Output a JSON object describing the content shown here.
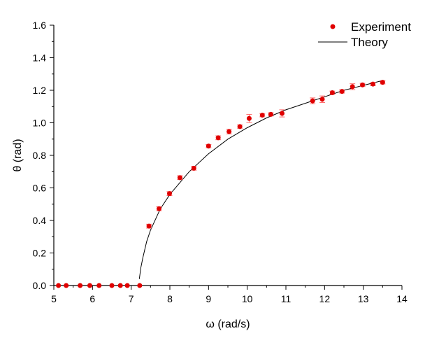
{
  "chart_data": {
    "type": "scatter",
    "title": "",
    "xlabel": "ω (rad/s)",
    "ylabel": "θ (rad)",
    "xlim": [
      5,
      14
    ],
    "ylim": [
      0,
      1.6
    ],
    "xticks": [
      "5",
      "6",
      "7",
      "8",
      "9",
      "10",
      "11",
      "12",
      "13",
      "14"
    ],
    "yticks": [
      "0.0",
      "0.2",
      "0.4",
      "0.6",
      "0.8",
      "1.0",
      "1.2",
      "1.4",
      "1.6"
    ],
    "grid": false,
    "legend_position": "top-right",
    "series": [
      {
        "name": "Experiment",
        "kind": "scatter",
        "color": "#e00000",
        "error_color": "#ff6666",
        "points": [
          {
            "x": 5.12,
            "y": 0.0
          },
          {
            "x": 5.32,
            "y": 0.0
          },
          {
            "x": 5.68,
            "y": 0.0
          },
          {
            "x": 5.93,
            "y": 0.0
          },
          {
            "x": 6.17,
            "y": 0.0
          },
          {
            "x": 6.5,
            "y": 0.0
          },
          {
            "x": 6.72,
            "y": 0.0
          },
          {
            "x": 6.9,
            "y": 0.0
          },
          {
            "x": 7.22,
            "y": 0.0
          },
          {
            "x": 7.46,
            "y": 0.365,
            "err": 0.012
          },
          {
            "x": 7.72,
            "y": 0.472,
            "err": 0.012
          },
          {
            "x": 7.99,
            "y": 0.565,
            "err": 0.012
          },
          {
            "x": 8.26,
            "y": 0.663,
            "err": 0.012
          },
          {
            "x": 8.62,
            "y": 0.721,
            "err": 0.012
          },
          {
            "x": 9.0,
            "y": 0.857,
            "err": 0.01
          },
          {
            "x": 9.25,
            "y": 0.908,
            "err": 0.012
          },
          {
            "x": 9.53,
            "y": 0.946,
            "err": 0.014
          },
          {
            "x": 9.81,
            "y": 0.977,
            "err": 0.01
          },
          {
            "x": 10.05,
            "y": 1.027,
            "err": 0.025
          },
          {
            "x": 10.39,
            "y": 1.047,
            "err": 0.01
          },
          {
            "x": 10.61,
            "y": 1.052,
            "err": 0.01
          },
          {
            "x": 10.9,
            "y": 1.058,
            "err": 0.022
          },
          {
            "x": 11.69,
            "y": 1.135,
            "err": 0.018
          },
          {
            "x": 11.94,
            "y": 1.145,
            "err": 0.02
          },
          {
            "x": 12.2,
            "y": 1.185,
            "err": 0.01
          },
          {
            "x": 12.45,
            "y": 1.193,
            "err": 0.01
          },
          {
            "x": 12.72,
            "y": 1.222,
            "err": 0.018
          },
          {
            "x": 12.98,
            "y": 1.233,
            "err": 0.01
          },
          {
            "x": 13.25,
            "y": 1.238,
            "err": 0.01
          },
          {
            "x": 13.5,
            "y": 1.249,
            "err": 0.01
          }
        ]
      },
      {
        "name": "Theory",
        "kind": "line",
        "color": "#000000",
        "points": [
          {
            "x": 7.21,
            "y": 0.04
          },
          {
            "x": 7.25,
            "y": 0.11
          },
          {
            "x": 7.3,
            "y": 0.17
          },
          {
            "x": 7.4,
            "y": 0.27
          },
          {
            "x": 7.5,
            "y": 0.34
          },
          {
            "x": 7.75,
            "y": 0.47
          },
          {
            "x": 8.0,
            "y": 0.56
          },
          {
            "x": 8.5,
            "y": 0.7
          },
          {
            "x": 9.0,
            "y": 0.81
          },
          {
            "x": 9.5,
            "y": 0.9
          },
          {
            "x": 10.0,
            "y": 0.97
          },
          {
            "x": 10.5,
            "y": 1.03
          },
          {
            "x": 11.0,
            "y": 1.08
          },
          {
            "x": 11.5,
            "y": 1.12
          },
          {
            "x": 12.0,
            "y": 1.16
          },
          {
            "x": 12.5,
            "y": 1.2
          },
          {
            "x": 13.0,
            "y": 1.23
          },
          {
            "x": 13.5,
            "y": 1.26
          }
        ]
      }
    ]
  }
}
